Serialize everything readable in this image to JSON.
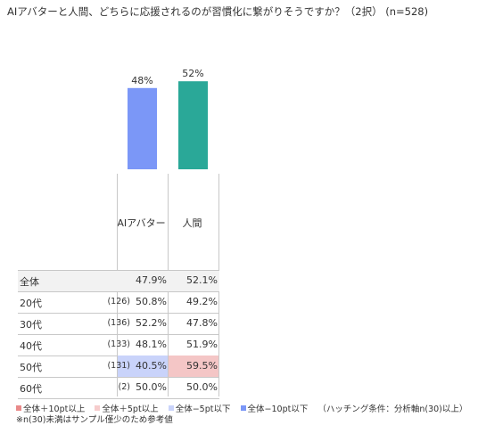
{
  "title": "AIアバターと人間、どちらに応援されるのが習慣化に繋がりそうですか？（2択） (n=528)",
  "chart_data": {
    "type": "bar",
    "categories": [
      "AIアバター",
      "人間"
    ],
    "values": [
      48,
      52
    ],
    "value_labels": [
      "48%",
      "52%"
    ],
    "colors": [
      "#7b97f7",
      "#2aa898"
    ],
    "ylim": [
      0,
      100
    ]
  },
  "table": {
    "columns": [
      "AIアバター",
      "人間"
    ],
    "rows": [
      {
        "label": "全体",
        "n": "",
        "v1": "47.9%",
        "v2": "52.1%",
        "h1": "",
        "h2": ""
      },
      {
        "label": "20代",
        "n": "(126)",
        "v1": "50.8%",
        "v2": "49.2%",
        "h1": "",
        "h2": ""
      },
      {
        "label": "30代",
        "n": "(136)",
        "v1": "52.2%",
        "v2": "47.8%",
        "h1": "",
        "h2": ""
      },
      {
        "label": "40代",
        "n": "(133)",
        "v1": "48.1%",
        "v2": "51.9%",
        "h1": "",
        "h2": ""
      },
      {
        "label": "50代",
        "n": "(131)",
        "v1": "40.5%",
        "v2": "59.5%",
        "h1": "#c9d3fa",
        "h2": "#f4c6c6"
      },
      {
        "label": "60代",
        "n": "(2)",
        "v1": "50.0%",
        "v2": "50.0%",
        "h1": "",
        "h2": ""
      }
    ]
  },
  "legend": [
    {
      "label": "全体＋10pt以上",
      "color": "#e98a8a"
    },
    {
      "label": "全体＋5pt以上",
      "color": "#f6cccc"
    },
    {
      "label": "全体−5pt以下",
      "color": "#c9d3fa"
    },
    {
      "label": "全体−10pt以下",
      "color": "#7b97f7"
    }
  ],
  "hatching": "（ハッチング条件：分析軸n(30)以上）",
  "note": "※n(30)未満はサンプル僅少のため参考値"
}
